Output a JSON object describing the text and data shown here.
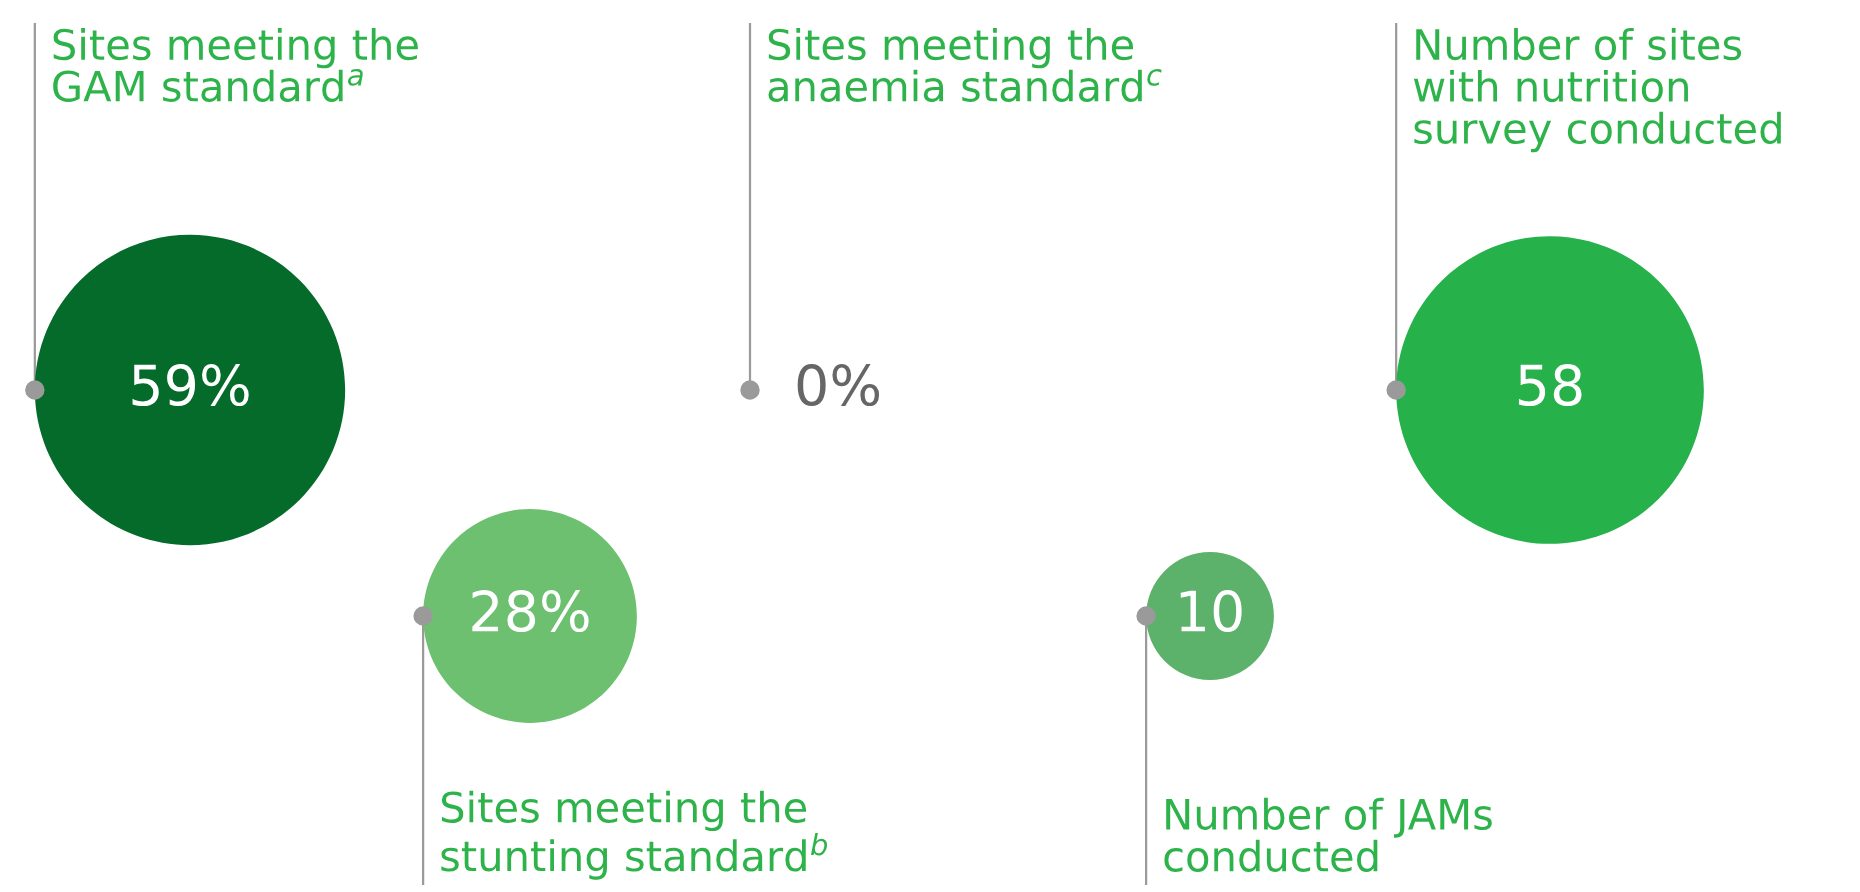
{
  "chart_data": {
    "type": "other",
    "categories": [
      "Sites meeting the\nGAM standard$^{a}$",
      "Sites meeting the\nstunting standard$^{b}$",
      "Sites meeting the\nanaemia standard$^{c}$",
      "Number of JAMs\nconducted",
      "Number of sites\nwith nutrition\nsurvey conducted"
    ],
    "values": [
      59,
      28,
      0,
      10,
      58
    ],
    "value_labels": [
      "59%",
      "28%",
      "0%",
      "10",
      "58"
    ],
    "colors": [
      "#056b2a",
      "#6cc070",
      null,
      "#5cb26b",
      "#26b14b"
    ]
  }
}
